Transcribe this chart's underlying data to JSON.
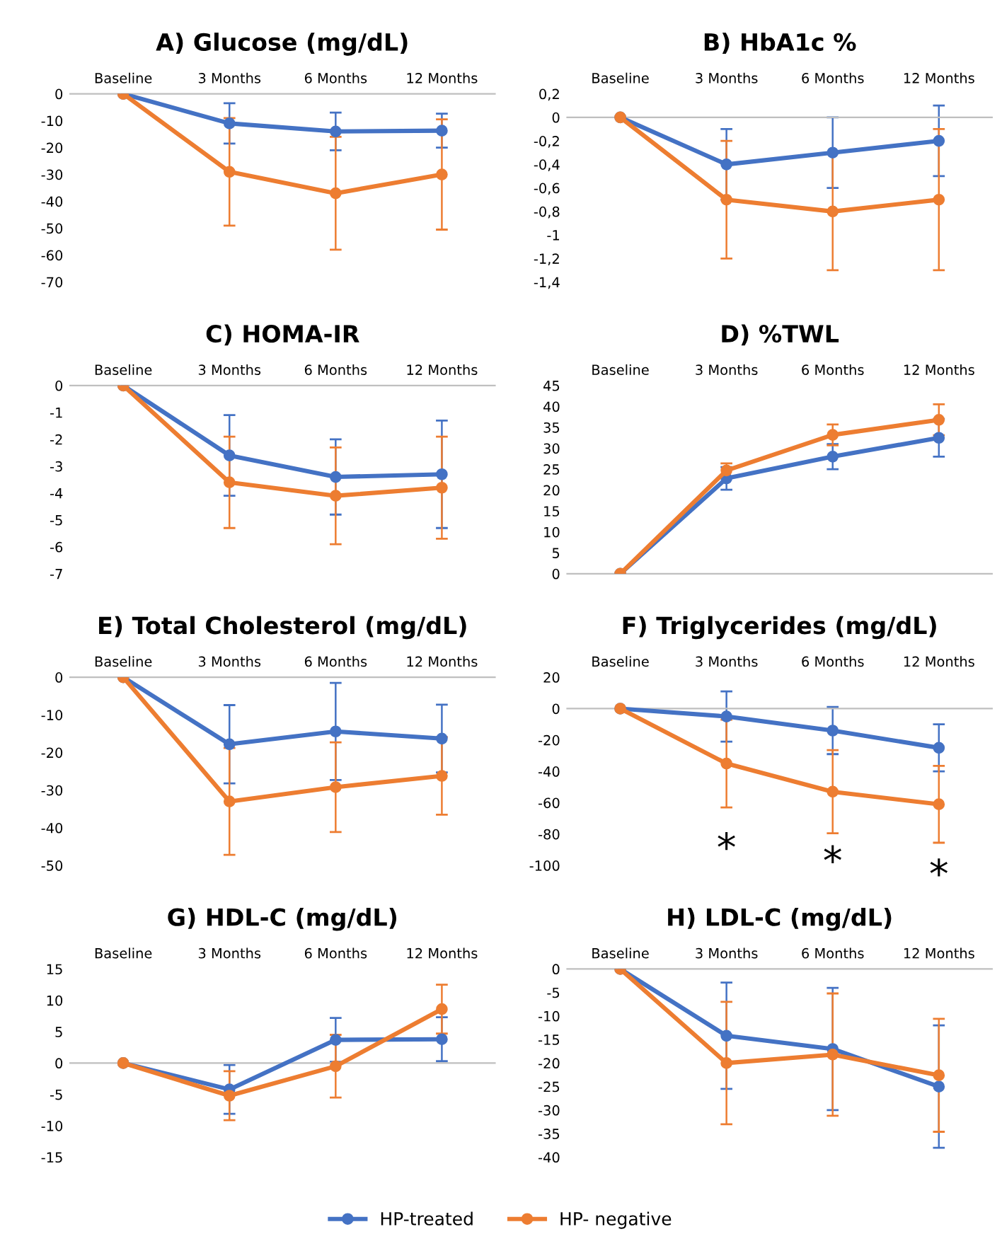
{
  "chart_data": [
    {
      "type": "line",
      "title": "A) Glucose (mg/dL)",
      "categories": [
        "Baseline",
        "3 Months",
        "6 Months",
        "12 Months"
      ],
      "marker": "circle",
      "legend": "bottom",
      "ylim": [
        -70,
        0
      ],
      "yticks": [
        -70,
        -60,
        -50,
        -40,
        -30,
        -20,
        -10,
        0
      ],
      "series": [
        {
          "name": "HP-treated",
          "color": "#4472c4",
          "values": [
            0,
            -11,
            -14,
            -13.7
          ],
          "errors": [
            null,
            7.5,
            7,
            6.3
          ]
        },
        {
          "name": "HP- negative",
          "color": "#ed7d31",
          "values": [
            0,
            -29,
            -37,
            -30
          ],
          "errors": [
            null,
            20,
            21,
            20.5
          ]
        }
      ]
    },
    {
      "type": "line",
      "title": "B) HbA1c %",
      "categories": [
        "Baseline",
        "3 Months",
        "6 Months",
        "12 Months"
      ],
      "marker": "circle",
      "ylim": [
        -1.4,
        0.2
      ],
      "yticks": [
        {
          "value": -1.4,
          "label": "-1,4"
        },
        {
          "value": -1.2,
          "label": "-1,2"
        },
        {
          "value": -1,
          "label": "-1"
        },
        {
          "value": -0.8,
          "label": "-0,8"
        },
        {
          "value": -0.6,
          "label": "-0,6"
        },
        {
          "value": -0.4,
          "label": "-0,4"
        },
        {
          "value": -0.2,
          "label": "-0,2"
        },
        {
          "value": 0,
          "label": "0"
        },
        {
          "value": 0.2,
          "label": "0,2"
        }
      ],
      "series": [
        {
          "color": "#4472c4",
          "values": [
            0,
            -0.4,
            -0.3,
            -0.2
          ],
          "errors": [
            null,
            0.3,
            0.3,
            0.3
          ]
        },
        {
          "color": "#ed7d31",
          "values": [
            0,
            -0.7,
            -0.8,
            -0.7
          ],
          "errors": [
            null,
            0.5,
            0.5,
            0.6
          ]
        }
      ]
    },
    {
      "type": "line",
      "title": "C) HOMA-IR",
      "categories": [
        "Baseline",
        "3 Months",
        "6 Months",
        "12 Months"
      ],
      "marker": "circle",
      "ylim": [
        -7,
        0
      ],
      "yticks": [
        -7,
        -6,
        -5,
        -4,
        -3,
        -2,
        -1,
        0
      ],
      "series": [
        {
          "color": "#4472c4",
          "values": [
            0,
            -2.6,
            -3.4,
            -3.3
          ],
          "errors": [
            null,
            1.5,
            1.4,
            2
          ]
        },
        {
          "color": "#ed7d31",
          "values": [
            0,
            -3.6,
            -4.1,
            -3.8
          ],
          "errors": [
            null,
            1.7,
            1.8,
            1.9
          ]
        }
      ]
    },
    {
      "type": "line",
      "title": "D) %TWL",
      "categories": [
        "Baseline",
        "3 Months",
        "6 Months",
        "12 Months"
      ],
      "marker": "circle",
      "ylim": [
        0,
        45
      ],
      "yticks": [
        0,
        5,
        10,
        15,
        20,
        25,
        30,
        35,
        40,
        45
      ],
      "series": [
        {
          "color": "#4472c4",
          "values": [
            0,
            22.8,
            28,
            32.5
          ],
          "errors": [
            null,
            2.7,
            3,
            4.5
          ]
        },
        {
          "color": "#ed7d31",
          "values": [
            0,
            24.7,
            33.2,
            36.8
          ],
          "errors": [
            null,
            1.7,
            2.5,
            3.7
          ]
        }
      ]
    },
    {
      "type": "line",
      "title": "E) Total Cholesterol (mg/dL)",
      "categories": [
        "Baseline",
        "3 Months",
        "6 Months",
        "12 Months"
      ],
      "marker": "circle",
      "ylim": [
        -50,
        0
      ],
      "yticks": [
        -50,
        -40,
        -30,
        -20,
        -10,
        0
      ],
      "series": [
        {
          "color": "#4472c4",
          "values": [
            0,
            -17.8,
            -14.4,
            -16.3
          ],
          "errors": [
            null,
            10.4,
            12.9,
            9
          ]
        },
        {
          "color": "#ed7d31",
          "values": [
            0,
            -33,
            -29.2,
            -26.2
          ],
          "errors": [
            null,
            14.2,
            11.9,
            10.3
          ]
        }
      ]
    },
    {
      "type": "line",
      "title": "F) Triglycerides (mg/dL)",
      "categories": [
        "Baseline",
        "3 Months",
        "6 Months",
        "12 Months"
      ],
      "marker": "circle",
      "ylim": [
        -100,
        20
      ],
      "yticks": [
        -100,
        -80,
        -60,
        -40,
        -20,
        0,
        20
      ],
      "series": [
        {
          "color": "#4472c4",
          "values": [
            0,
            -5,
            -14,
            -25
          ],
          "errors": [
            null,
            16,
            15,
            15
          ]
        },
        {
          "color": "#ed7d31",
          "values": [
            0,
            -35,
            -53,
            -61
          ],
          "errors": [
            null,
            28,
            26.5,
            24.5
          ]
        }
      ],
      "annotations": [
        "*",
        "*",
        "*"
      ]
    },
    {
      "type": "line",
      "title": "G) HDL-C (mg/dL)",
      "categories": [
        "Baseline",
        "3 Months",
        "6 Months",
        "12 Months"
      ],
      "marker": "circle",
      "ylim": [
        -15,
        15
      ],
      "yticks": [
        -15,
        -10,
        -5,
        0,
        5,
        10,
        15
      ],
      "series": [
        {
          "color": "#4472c4",
          "values": [
            0,
            -4.2,
            3.7,
            3.8
          ],
          "errors": [
            null,
            3.9,
            3.5,
            3.5
          ]
        },
        {
          "color": "#ed7d31",
          "values": [
            0,
            -5.2,
            -0.5,
            8.6
          ],
          "errors": [
            null,
            3.9,
            5,
            3.9
          ]
        }
      ]
    },
    {
      "type": "line",
      "title": "H) LDL-C (mg/dL)",
      "categories": [
        "Baseline",
        "3 Months",
        "6 Months",
        "12 Months"
      ],
      "marker": "circle",
      "ylim": [
        -40,
        0
      ],
      "yticks": [
        -40,
        -35,
        -30,
        -25,
        -20,
        -15,
        -10,
        -5,
        0
      ],
      "series": [
        {
          "color": "#4472c4",
          "values": [
            0,
            -14.2,
            -17,
            -25
          ],
          "errors": [
            null,
            11.3,
            13,
            13
          ]
        },
        {
          "color": "#ed7d31",
          "values": [
            0,
            -20,
            -18.2,
            -22.6
          ],
          "errors": [
            null,
            13,
            13,
            12
          ]
        }
      ]
    }
  ]
}
